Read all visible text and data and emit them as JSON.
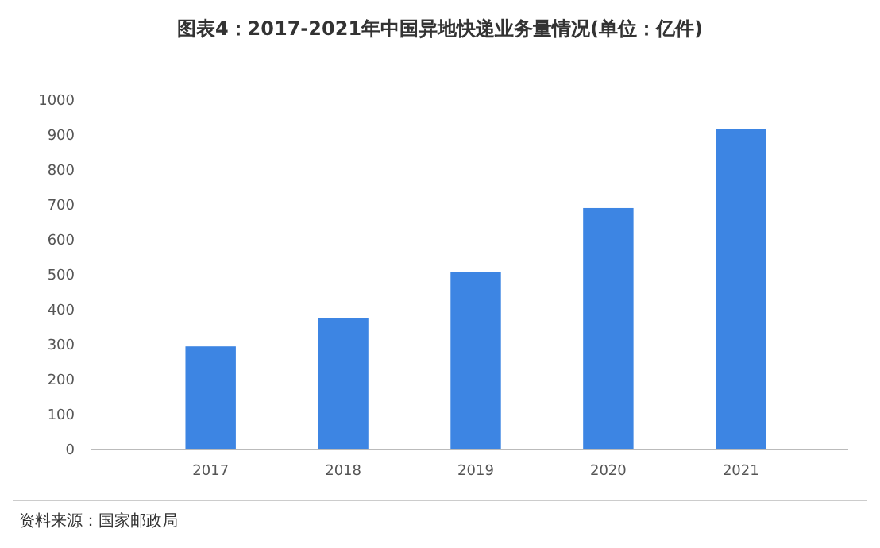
{
  "chart_data": {
    "type": "bar",
    "title": "图表4：2017-2021年中国异地快递业务量情况(单位：亿件)",
    "categories": [
      "2017",
      "2018",
      "2019",
      "2020",
      "2021"
    ],
    "values": [
      295,
      377,
      509,
      691,
      918
    ],
    "color": "#3d85e3",
    "ylim": [
      0,
      1000
    ],
    "yticks": [
      0,
      100,
      200,
      300,
      400,
      500,
      600,
      700,
      800,
      900,
      1000
    ],
    "annotations": [
      "资料来源：国家邮政局"
    ]
  }
}
